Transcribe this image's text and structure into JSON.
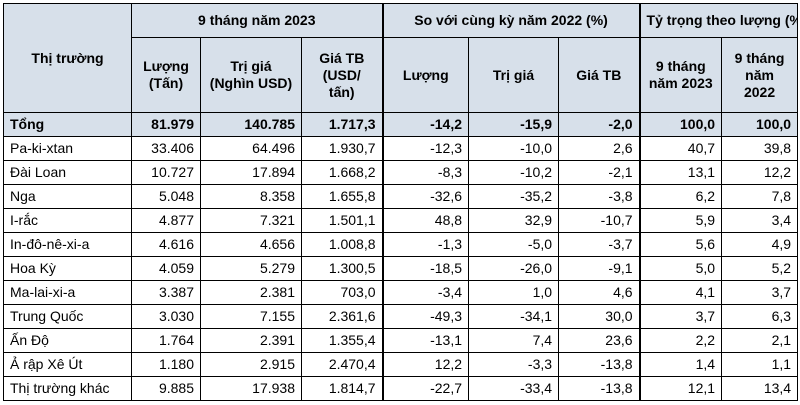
{
  "headers": {
    "market": "Thị trường",
    "group1": "9 tháng năm 2023",
    "group2": "So với cùng kỳ năm 2022 (%)",
    "group3": "Tỷ trọng theo lượng (%)",
    "sub": [
      "Lượng (Tấn)",
      "Trị giá (Nghìn USD)",
      "Giá TB (USD/ tấn)",
      "Lượng",
      "Trị giá",
      "Giá TB",
      "9 tháng năm 2023",
      "9 tháng năm 2022"
    ]
  },
  "rows": [
    [
      "Tổng",
      "81.979",
      "140.785",
      "1.717,3",
      "-14,2",
      "-15,9",
      "-2,0",
      "100,0",
      "100,0"
    ],
    [
      "Pa-ki-xtan",
      "33.406",
      "64.496",
      "1.930,7",
      "-12,3",
      "-10,0",
      "2,6",
      "40,7",
      "39,8"
    ],
    [
      "Đài Loan",
      "10.727",
      "17.894",
      "1.668,2",
      "-8,3",
      "-10,2",
      "-2,1",
      "13,1",
      "12,2"
    ],
    [
      "Nga",
      "5.048",
      "8.358",
      "1.655,8",
      "-32,6",
      "-35,2",
      "-3,8",
      "6,2",
      "7,8"
    ],
    [
      "I-rắc",
      "4.877",
      "7.321",
      "1.501,1",
      "48,8",
      "32,9",
      "-10,7",
      "5,9",
      "3,4"
    ],
    [
      "In-đô-nê-xi-a",
      "4.616",
      "4.656",
      "1.008,8",
      "-1,3",
      "-5,0",
      "-3,7",
      "5,6",
      "4,9"
    ],
    [
      "Hoa Kỳ",
      "4.059",
      "5.279",
      "1.300,5",
      "-18,5",
      "-26,0",
      "-9,1",
      "5,0",
      "5,2"
    ],
    [
      "Ma-lai-xi-a",
      "3.387",
      "2.381",
      "703,0",
      "-3,4",
      "1,0",
      "4,6",
      "4,1",
      "3,7"
    ],
    [
      "Trung Quốc",
      "3.030",
      "7.155",
      "2.361,6",
      "-49,3",
      "-34,1",
      "30,0",
      "3,7",
      "6,3"
    ],
    [
      "Ấn Độ",
      "1.764",
      "2.391",
      "1.355,4",
      "-13,1",
      "7,4",
      "23,6",
      "2,2",
      "2,1"
    ],
    [
      "Ả rập Xê Út",
      "1.180",
      "2.915",
      "2.470,4",
      "12,2",
      "-3,3",
      "-13,8",
      "1,4",
      "1,1"
    ],
    [
      "Thị trường khác",
      "9.885",
      "17.938",
      "1.814,7",
      "-22,7",
      "-33,4",
      "-13,8",
      "12,1",
      "13,4"
    ]
  ]
}
